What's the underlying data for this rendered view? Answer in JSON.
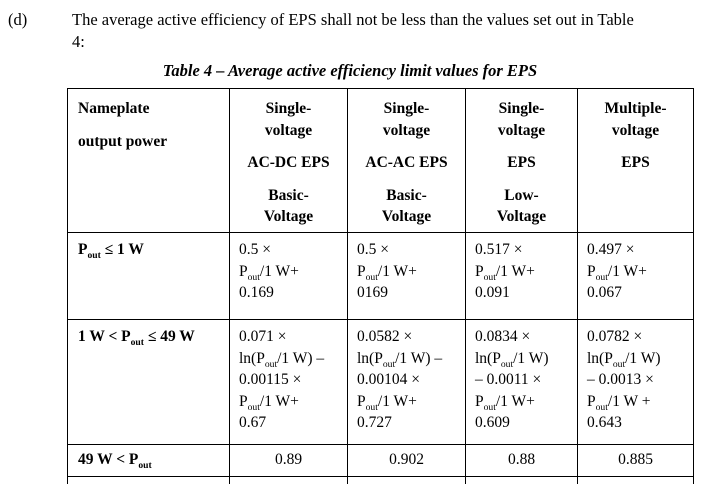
{
  "document": {
    "item_label": "(d)",
    "paragraph": "The average active efficiency of EPS shall not be less than the values set out in Table\n4:",
    "table_title": "Table 4 – Average active efficiency limit values for EPS"
  },
  "table": {
    "headers": [
      "Nameplate\n\noutput power",
      "Single-\nvoltage\n\nAC-DC EPS\n\nBasic-\nVoltage",
      "Single-\nvoltage\n\nAC-AC EPS\n\nBasic-\nVoltage",
      "Single-\nvoltage\n\nEPS\n\nLow-\nVoltage",
      "Multiple-\nvoltage\n\nEPS"
    ],
    "rows": [
      {
        "label": "P_{out} ≤ 1 W",
        "cells": [
          "0.5 ×\nP_{out}/1 W+\n0.169",
          "0.5 ×\nP_{out}/1 W+\n0169",
          "0.517 ×\nP_{out}/1 W+\n0.091",
          "0.497 ×\nP_{out}/1 W+\n0.067"
        ]
      },
      {
        "label": "1 W < P_{out} ≤ 49 W",
        "cells": [
          "0.071 ×\nln(P_{out}/1 W) –\n0.00115 ×\nP_{out}/1 W+\n0.67",
          "0.0582 ×\nln(P_{out}/1 W) –\n0.00104 ×\nP_{out}/1 W+\n0.727",
          "0.0834 ×\nln(P_{out}/1 W)\n– 0.0011 ×\nP_{out}/1 W+\n0.609",
          "0.0782 ×\nln(P_{out}/1 W)\n– 0.0013 ×\nP_{out}/1 W +\n0.643"
        ]
      },
      {
        "label": "49 W < P_{out}",
        "cells": [
          "0.89",
          "0.902",
          "0.88",
          "0.885"
        ]
      }
    ]
  },
  "colors": {
    "text": "#000000",
    "background": "#ffffff",
    "table_border": "#000000"
  }
}
